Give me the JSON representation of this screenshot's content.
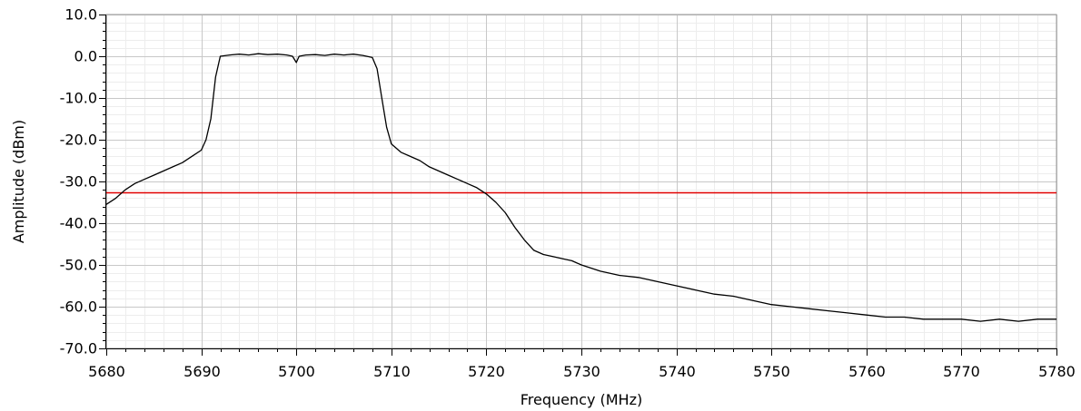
{
  "chart_data": {
    "type": "line",
    "title": "",
    "xlabel": "Frequency (MHz)",
    "ylabel": "Amplitude (dBm)",
    "xlim": [
      5680,
      5780
    ],
    "ylim": [
      -70,
      10
    ],
    "x_ticks": [
      5680,
      5690,
      5700,
      5710,
      5720,
      5730,
      5740,
      5750,
      5760,
      5770,
      5780
    ],
    "x_tick_labels": [
      "5680",
      "5690",
      "5700",
      "5710",
      "5720",
      "5730",
      "5740",
      "5750",
      "5760",
      "5770",
      "5780"
    ],
    "y_ticks": [
      10,
      0,
      -10,
      -20,
      -30,
      -40,
      -50,
      -60,
      -70
    ],
    "y_tick_labels": [
      "10.0",
      "0.0",
      "-10.0",
      "-20.0",
      "-30.0",
      "-40.0",
      "-50.0",
      "-60.0",
      "-70.0"
    ],
    "grid": true,
    "minor_grid": true,
    "legend": "none",
    "series": [
      {
        "color": "#000000",
        "x": [
          5680,
          5681,
          5682,
          5683,
          5684,
          5685,
          5686,
          5687,
          5688,
          5689,
          5690,
          5690.5,
          5691,
          5691.5,
          5692,
          5693,
          5694,
          5695,
          5696,
          5697,
          5698,
          5699,
          5699.6,
          5700,
          5700.3,
          5701,
          5702,
          5703,
          5704,
          5705,
          5706,
          5707,
          5708,
          5708.5,
          5709,
          5709.5,
          5710,
          5711,
          5712,
          5713,
          5714,
          5715,
          5716,
          5717,
          5718,
          5719,
          5720,
          5721,
          5722,
          5723,
          5724,
          5725,
          5726,
          5727,
          5728,
          5729,
          5730,
          5732,
          5734,
          5736,
          5738,
          5740,
          5742,
          5744,
          5746,
          5748,
          5750,
          5752,
          5754,
          5756,
          5758,
          5760,
          5762,
          5764,
          5766,
          5768,
          5770,
          5772,
          5774,
          5776,
          5778,
          5780
        ],
        "y": [
          -35.5,
          -34,
          -32,
          -30.5,
          -29.5,
          -28.5,
          -27.5,
          -26.5,
          -25.5,
          -24,
          -22.5,
          -20,
          -15,
          -5,
          0,
          0.3,
          0.5,
          0.3,
          0.6,
          0.4,
          0.5,
          0.3,
          0,
          -1.5,
          0,
          0.3,
          0.4,
          0.2,
          0.5,
          0.3,
          0.5,
          0.2,
          -0.3,
          -3,
          -10,
          -17,
          -21,
          -23,
          -24,
          -25,
          -26.5,
          -27.5,
          -28.5,
          -29.5,
          -30.5,
          -31.5,
          -33,
          -35,
          -37.5,
          -41,
          -44,
          -46.5,
          -47.5,
          -48,
          -48.5,
          -49,
          -50,
          -51.5,
          -52.5,
          -53,
          -54,
          -55,
          -56,
          -57,
          -57.5,
          -58.5,
          -59.5,
          -60,
          -60.5,
          -61,
          -61.5,
          -62,
          -62.5,
          -62.5,
          -63,
          -63,
          -63,
          -63.5,
          -63,
          -63.5,
          -63,
          -63
        ]
      }
    ],
    "threshold": {
      "y": -32.5,
      "color": "#e00000"
    }
  }
}
